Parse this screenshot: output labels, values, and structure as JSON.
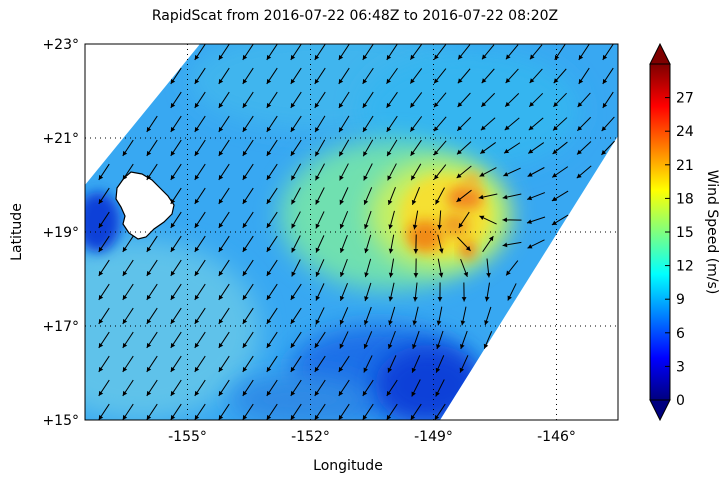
{
  "title": "RapidScat  from 2016-07-22 06:48Z to 2016-07-22 08:20Z",
  "xlabel": "Longitude",
  "ylabel": "Latitude",
  "colorbar": {
    "label": "Wind Speed (m/s)",
    "ticks": [
      "0",
      "3",
      "6",
      "9",
      "12",
      "15",
      "18",
      "21",
      "24",
      "27"
    ],
    "range": [
      0,
      30
    ],
    "colormap": [
      "#00007f",
      "#0000ff",
      "#007fff",
      "#00ffff",
      "#7fff7f",
      "#ffff00",
      "#ff7f00",
      "#ff0000",
      "#7f0000"
    ]
  },
  "chart_data": {
    "type": "map",
    "x_range": [
      -157.5,
      -144.5
    ],
    "y_range": [
      15,
      23
    ],
    "x_ticks": [
      {
        "value": -155,
        "label": "-155°"
      },
      {
        "value": -152,
        "label": "-152°"
      },
      {
        "value": -149,
        "label": "-149°"
      },
      {
        "value": -146,
        "label": "-146°"
      }
    ],
    "y_ticks": [
      {
        "value": 23,
        "label": "+23°"
      },
      {
        "value": 21,
        "label": "+21°"
      },
      {
        "value": 19,
        "label": "+19°"
      },
      {
        "value": 17,
        "label": "+17°"
      },
      {
        "value": 15,
        "label": "+15°"
      }
    ],
    "grid": "dotted",
    "storm_center": {
      "lon": -148.2,
      "lat": 19.3
    },
    "max_wind_speed": 24,
    "background_wind_speed": 9,
    "island": "Hawaii (Big Island) coastline, near -155.5°, +19.6°"
  }
}
